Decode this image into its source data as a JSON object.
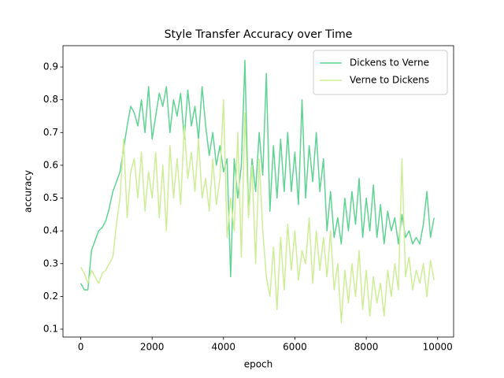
{
  "chart_data": {
    "type": "line",
    "title": "Style Transfer Accuracy over Time",
    "x_label": "epoch",
    "y_label": "accuracy",
    "x": [
      0,
      100,
      200,
      300,
      400,
      500,
      600,
      700,
      800,
      900,
      1000,
      1100,
      1200,
      1300,
      1400,
      1500,
      1600,
      1700,
      1800,
      1900,
      2000,
      2100,
      2200,
      2300,
      2400,
      2500,
      2600,
      2700,
      2800,
      2900,
      3000,
      3100,
      3200,
      3300,
      3400,
      3500,
      3600,
      3700,
      3800,
      3900,
      4000,
      4100,
      4200,
      4300,
      4400,
      4500,
      4600,
      4700,
      4800,
      4900,
      5000,
      5100,
      5200,
      5300,
      5400,
      5500,
      5600,
      5700,
      5800,
      5900,
      6000,
      6100,
      6200,
      6300,
      6400,
      6500,
      6600,
      6700,
      6800,
      6900,
      7000,
      7100,
      7200,
      7300,
      7400,
      7500,
      7600,
      7700,
      7800,
      7900,
      8000,
      8100,
      8200,
      8300,
      8400,
      8500,
      8600,
      8700,
      8800,
      8900,
      9000,
      9100,
      9200,
      9300,
      9400,
      9500,
      9600,
      9700,
      9800,
      9900
    ],
    "series": [
      {
        "name": "Dickens to Verne",
        "color": "#5fd393",
        "values": [
          0.24,
          0.22,
          0.22,
          0.34,
          0.37,
          0.4,
          0.41,
          0.43,
          0.47,
          0.52,
          0.55,
          0.58,
          0.65,
          0.72,
          0.78,
          0.76,
          0.72,
          0.8,
          0.7,
          0.84,
          0.68,
          0.75,
          0.82,
          0.78,
          0.84,
          0.7,
          0.8,
          0.75,
          0.82,
          0.68,
          0.83,
          0.72,
          0.78,
          0.68,
          0.84,
          0.72,
          0.63,
          0.7,
          0.6,
          0.66,
          0.58,
          0.62,
          0.26,
          0.62,
          0.5,
          0.6,
          0.92,
          0.45,
          0.62,
          0.52,
          0.7,
          0.57,
          0.88,
          0.46,
          0.66,
          0.5,
          0.68,
          0.52,
          0.7,
          0.52,
          0.64,
          0.48,
          0.8,
          0.5,
          0.66,
          0.55,
          0.7,
          0.52,
          0.62,
          0.4,
          0.52,
          0.38,
          0.44,
          0.36,
          0.5,
          0.4,
          0.52,
          0.42,
          0.56,
          0.38,
          0.5,
          0.4,
          0.54,
          0.38,
          0.48,
          0.36,
          0.46,
          0.4,
          0.44,
          0.36,
          0.45,
          0.38,
          0.4,
          0.36,
          0.38,
          0.36,
          0.42,
          0.52,
          0.38,
          0.44
        ]
      },
      {
        "name": "Verne to Dickens",
        "color": "#cdee96",
        "values": [
          0.29,
          0.27,
          0.24,
          0.28,
          0.26,
          0.24,
          0.27,
          0.28,
          0.3,
          0.32,
          0.42,
          0.5,
          0.68,
          0.44,
          0.58,
          0.62,
          0.5,
          0.64,
          0.46,
          0.58,
          0.5,
          0.64,
          0.44,
          0.6,
          0.4,
          0.66,
          0.5,
          0.62,
          0.48,
          0.72,
          0.56,
          0.64,
          0.52,
          0.68,
          0.5,
          0.56,
          0.46,
          0.62,
          0.48,
          0.56,
          0.8,
          0.38,
          0.5,
          0.4,
          0.7,
          0.32,
          0.76,
          0.44,
          0.6,
          0.3,
          0.62,
          0.4,
          0.26,
          0.2,
          0.35,
          0.16,
          0.38,
          0.22,
          0.42,
          0.28,
          0.4,
          0.25,
          0.34,
          0.3,
          0.44,
          0.24,
          0.4,
          0.28,
          0.38,
          0.26,
          0.4,
          0.22,
          0.3,
          0.12,
          0.28,
          0.18,
          0.3,
          0.2,
          0.34,
          0.16,
          0.28,
          0.14,
          0.26,
          0.18,
          0.24,
          0.14,
          0.28,
          0.2,
          0.3,
          0.22,
          0.62,
          0.26,
          0.32,
          0.22,
          0.28,
          0.24,
          0.3,
          0.2,
          0.31,
          0.25
        ]
      }
    ],
    "xlim": [
      -497.5,
      10447.5
    ],
    "ylim": [
      0.076,
      0.965
    ],
    "xticks": [
      0,
      2000,
      4000,
      6000,
      8000,
      10000
    ],
    "yticks": [
      0.1,
      0.2,
      0.3,
      0.4,
      0.5,
      0.6,
      0.7,
      0.8,
      0.9
    ],
    "legend": "upper right",
    "grid": false
  }
}
